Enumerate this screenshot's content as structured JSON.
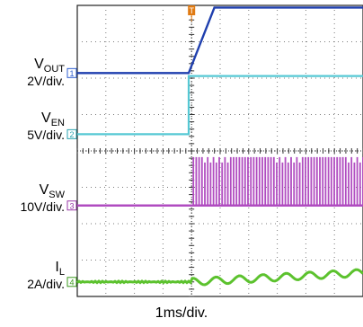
{
  "timebase": "1ms/div.",
  "trigger_marker": "T",
  "colors": {
    "ch1": "#1f3fae",
    "ch1_marker": "#2f5fd0",
    "ch2": "#56c8d4",
    "ch2_marker": "#2aa3b0",
    "ch3": "#b04cc0",
    "ch3_marker": "#9a3aa8",
    "ch4": "#5cc22e",
    "ch4_marker": "#3a9a1c",
    "trigger": "#e07a12",
    "grid": "#7a7a7a",
    "watermark": "#e8353a"
  },
  "channels": [
    {
      "marker": "1",
      "symbol": "V",
      "subscript": "OUT",
      "scale": "2V/div."
    },
    {
      "marker": "2",
      "symbol": "V",
      "subscript": "EN",
      "scale": "5V/div."
    },
    {
      "marker": "3",
      "symbol": "V",
      "subscript": "SW",
      "scale": "10V/div."
    },
    {
      "marker": "4",
      "symbol": "I",
      "subscript": "L",
      "scale": "2A/div."
    }
  ],
  "chart_data": {
    "type": "line",
    "title": "",
    "xlabel": "1ms/div.",
    "x_divisions": 10,
    "y_divisions": 8,
    "grid": true,
    "series": [
      {
        "name": "VOUT",
        "scale": "2V/div.",
        "x": [
          0,
          3.9,
          4.8,
          10
        ],
        "y": [
          0,
          0,
          1.8,
          1.8
        ]
      },
      {
        "name": "VEN",
        "scale": "5V/div.",
        "x": [
          0,
          3.9,
          3.9,
          10
        ],
        "y": [
          0,
          0,
          1.6,
          1.6
        ]
      },
      {
        "name": "VSW",
        "scale": "10V/div.",
        "x": [
          0,
          4.0,
          4.0,
          10
        ],
        "y": [
          0,
          0,
          1.4,
          1.4
        ],
        "switching_from": 4.0
      },
      {
        "name": "IL",
        "scale": "2A/div.",
        "x": [
          0,
          4.0,
          10
        ],
        "y": [
          0,
          0,
          0.25
        ],
        "ripple_from": 4.0
      }
    ]
  }
}
